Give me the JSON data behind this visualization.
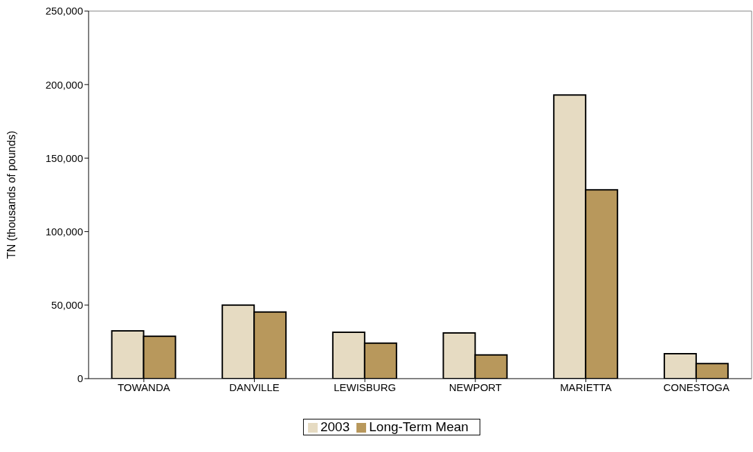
{
  "chart_data": {
    "type": "bar",
    "ylabel": "TN (thousands of pounds)",
    "categories": [
      "TOWANDA",
      "DANVILLE",
      "LEWISBURG",
      "NEWPORT",
      "MARIETTA",
      "CONESTOGA"
    ],
    "series": [
      {
        "name": "2003",
        "color": "#e6dbc2",
        "values": [
          32500,
          50000,
          31500,
          31100,
          192900,
          17000
        ]
      },
      {
        "name": "Long-Term Mean",
        "color": "#b8985c",
        "values": [
          28800,
          45300,
          24100,
          16100,
          128400,
          10200
        ]
      }
    ],
    "ylim": [
      0,
      250000
    ],
    "yticks": [
      0,
      {
        "value": 50000,
        "label": "50,000"
      },
      {
        "value": 100000,
        "label": "100,000"
      },
      {
        "value": 150000,
        "label": "150,000"
      },
      {
        "value": 200000,
        "label": "200,000"
      },
      {
        "value": 250000,
        "label": "250,000"
      }
    ],
    "grid": false,
    "legend": "bottom"
  }
}
